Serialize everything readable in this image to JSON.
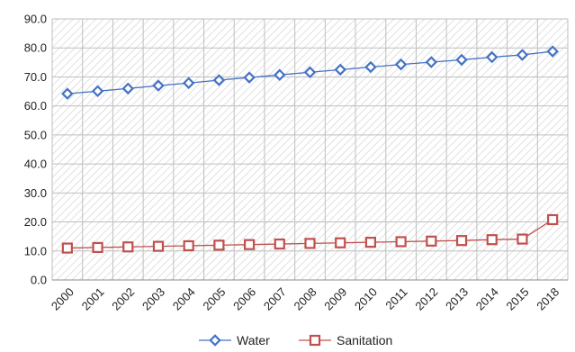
{
  "chart_data": {
    "type": "line",
    "title": "",
    "xlabel": "",
    "ylabel": "",
    "ylim": [
      0,
      90
    ],
    "yticks": [
      "0.0",
      "10.0",
      "20.0",
      "30.0",
      "40.0",
      "50.0",
      "60.0",
      "70.0",
      "80.0",
      "90.0"
    ],
    "categories": [
      "2000",
      "2001",
      "2002",
      "2003",
      "2004",
      "2005",
      "2006",
      "2007",
      "2008",
      "2009",
      "2010",
      "2011",
      "2012",
      "2013",
      "2014",
      "2015",
      "2018"
    ],
    "grid": "on",
    "legend": "bottom",
    "series": [
      {
        "name": "Water",
        "color": "#4472c4",
        "marker": "diamond",
        "values": [
          64.2,
          65.1,
          66.0,
          67.0,
          67.9,
          68.9,
          69.8,
          70.7,
          71.6,
          72.5,
          73.4,
          74.3,
          75.1,
          75.9,
          76.8,
          77.6,
          78.8
        ]
      },
      {
        "name": "Sanitation",
        "color": "#c0504d",
        "marker": "square",
        "values": [
          11.0,
          11.2,
          11.4,
          11.6,
          11.8,
          12.0,
          12.2,
          12.4,
          12.6,
          12.8,
          13.0,
          13.2,
          13.4,
          13.6,
          13.9,
          14.1,
          20.8
        ]
      }
    ]
  }
}
